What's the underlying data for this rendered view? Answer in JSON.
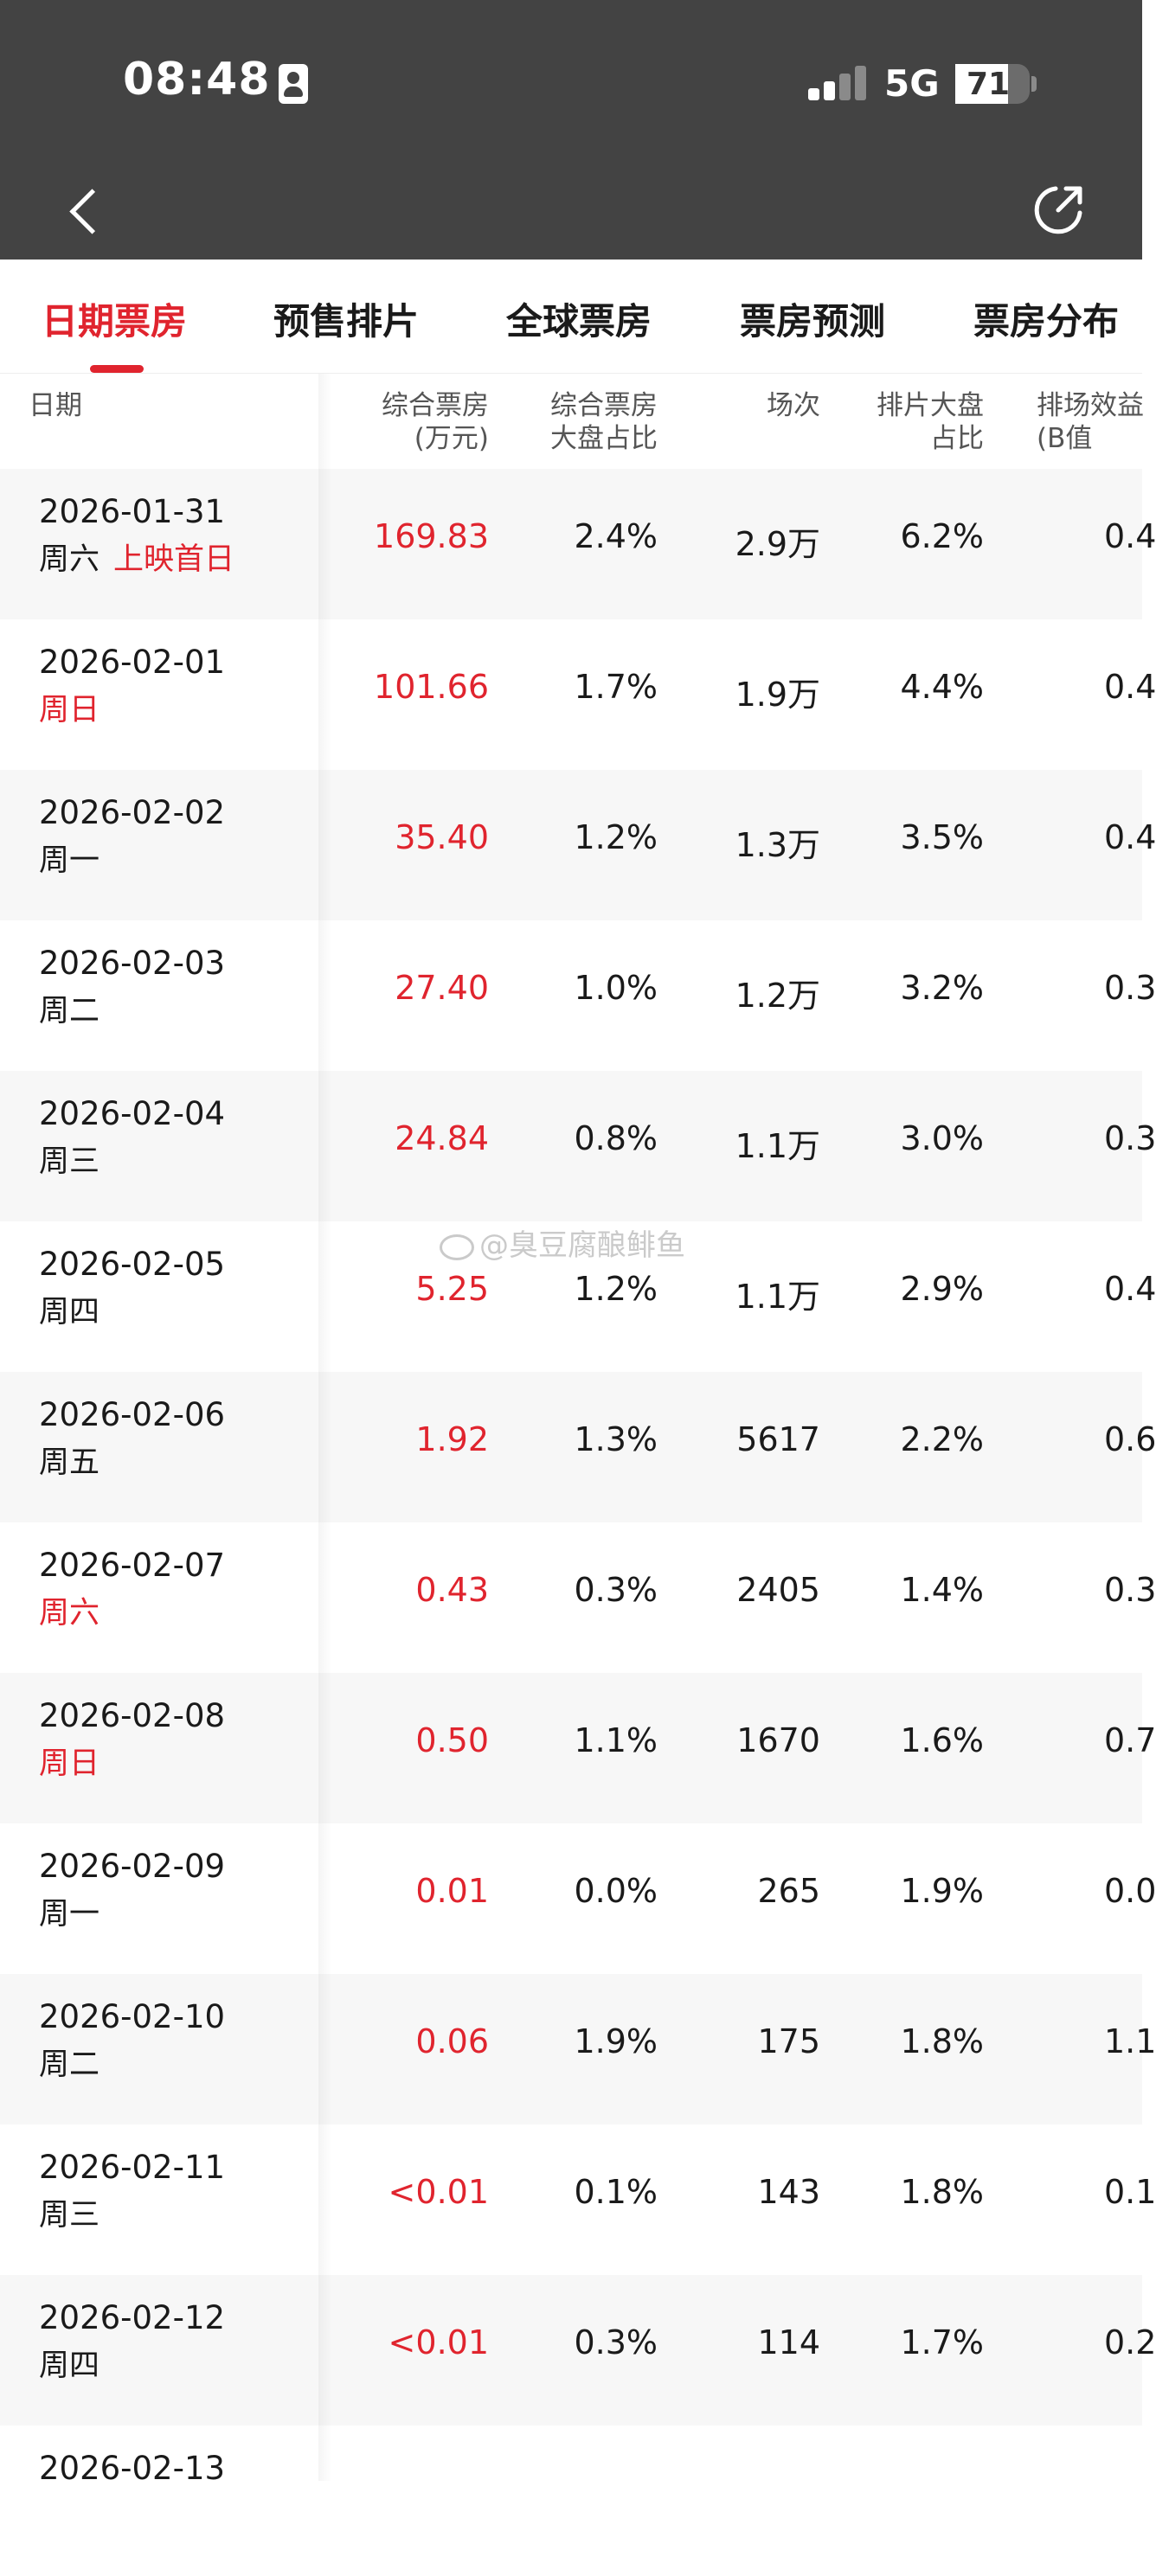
{
  "status_bar": {
    "time": "08:48",
    "network": "5G",
    "battery": "71",
    "battery_level": 0.71
  },
  "tabs": [
    {
      "label": "日期票房",
      "active": true
    },
    {
      "label": "预售排片",
      "active": false
    },
    {
      "label": "全球票房",
      "active": false
    },
    {
      "label": "票房预测",
      "active": false
    },
    {
      "label": "票房分布",
      "active": false
    }
  ],
  "table": {
    "headers": {
      "date": "日期",
      "boxoffice": "综合票房\n(万元)",
      "share": "综合票房\n大盘占比",
      "shows": "场次",
      "sched": "排片大盘\n占比",
      "eff": "排场效益\n(B值"
    },
    "rows": [
      {
        "date": "2026-01-31",
        "weekday": "周六",
        "weekend": false,
        "note": "上映首日",
        "boxoffice": "169.83",
        "share": "2.4%",
        "shows": "2.9万",
        "sched": "6.2%",
        "eff": "0.4"
      },
      {
        "date": "2026-02-01",
        "weekday": "周日",
        "weekend": true,
        "note": "",
        "boxoffice": "101.66",
        "share": "1.7%",
        "shows": "1.9万",
        "sched": "4.4%",
        "eff": "0.4"
      },
      {
        "date": "2026-02-02",
        "weekday": "周一",
        "weekend": false,
        "note": "",
        "boxoffice": "35.40",
        "share": "1.2%",
        "shows": "1.3万",
        "sched": "3.5%",
        "eff": "0.4"
      },
      {
        "date": "2026-02-03",
        "weekday": "周二",
        "weekend": false,
        "note": "",
        "boxoffice": "27.40",
        "share": "1.0%",
        "shows": "1.2万",
        "sched": "3.2%",
        "eff": "0.3"
      },
      {
        "date": "2026-02-04",
        "weekday": "周三",
        "weekend": false,
        "note": "",
        "boxoffice": "24.84",
        "share": "0.8%",
        "shows": "1.1万",
        "sched": "3.0%",
        "eff": "0.3"
      },
      {
        "date": "2026-02-05",
        "weekday": "周四",
        "weekend": false,
        "note": "",
        "boxoffice": "5.25",
        "share": "1.2%",
        "shows": "1.1万",
        "sched": "2.9%",
        "eff": "0.4"
      },
      {
        "date": "2026-02-06",
        "weekday": "周五",
        "weekend": false,
        "note": "",
        "boxoffice": "1.92",
        "share": "1.3%",
        "shows": "5617",
        "sched": "2.2%",
        "eff": "0.6"
      },
      {
        "date": "2026-02-07",
        "weekday": "周六",
        "weekend": true,
        "note": "",
        "boxoffice": "0.43",
        "share": "0.3%",
        "shows": "2405",
        "sched": "1.4%",
        "eff": "0.3"
      },
      {
        "date": "2026-02-08",
        "weekday": "周日",
        "weekend": true,
        "note": "",
        "boxoffice": "0.50",
        "share": "1.1%",
        "shows": "1670",
        "sched": "1.6%",
        "eff": "0.7"
      },
      {
        "date": "2026-02-09",
        "weekday": "周一",
        "weekend": false,
        "note": "",
        "boxoffice": "0.01",
        "share": "0.0%",
        "shows": "265",
        "sched": "1.9%",
        "eff": "0.0"
      },
      {
        "date": "2026-02-10",
        "weekday": "周二",
        "weekend": false,
        "note": "",
        "boxoffice": "0.06",
        "share": "1.9%",
        "shows": "175",
        "sched": "1.8%",
        "eff": "1.1"
      },
      {
        "date": "2026-02-11",
        "weekday": "周三",
        "weekend": false,
        "note": "",
        "boxoffice": "<0.01",
        "share": "0.1%",
        "shows": "143",
        "sched": "1.8%",
        "eff": "0.1"
      },
      {
        "date": "2026-02-12",
        "weekday": "周四",
        "weekend": false,
        "note": "",
        "boxoffice": "<0.01",
        "share": "0.3%",
        "shows": "114",
        "sched": "1.7%",
        "eff": "0.2"
      },
      {
        "date": "2026-02-13",
        "weekday": "",
        "weekend": false,
        "note": "",
        "boxoffice": "",
        "share": "",
        "shows": "",
        "sched": "",
        "eff": ""
      }
    ]
  },
  "watermark": "@臭豆腐酿鲱鱼"
}
